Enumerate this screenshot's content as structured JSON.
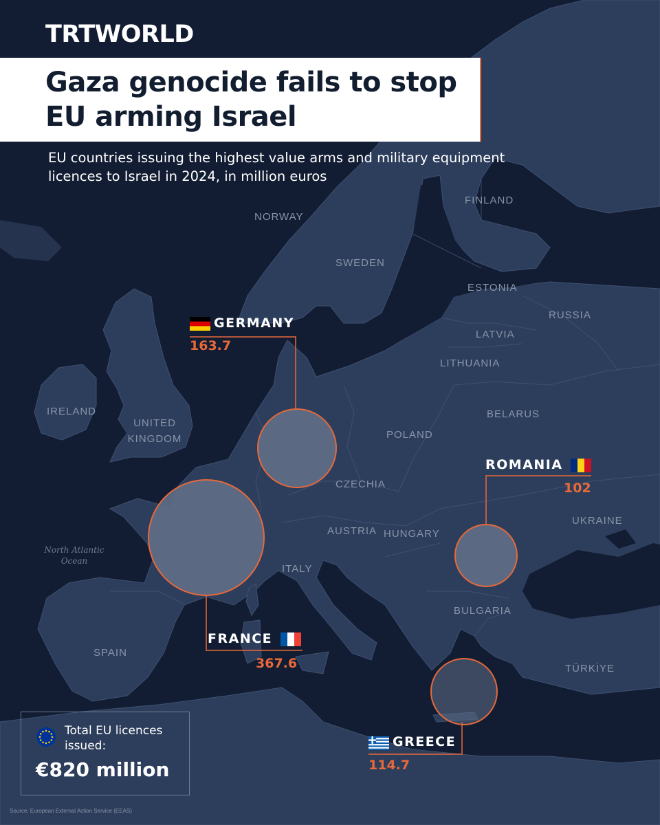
{
  "brand": "TRTWORLD",
  "title": "Gaza genocide fails to stop EU arming Israel",
  "subtitle": "EU countries issuing the highest value arms and military equipment licences to Israel in 2024, in million euros",
  "country_labels": {
    "finland": "FINLAND",
    "norway": "NORWAY",
    "sweden": "SWEDEN",
    "estonia": "ESTONIA",
    "russia": "RUSSIA",
    "latvia": "LATVIA",
    "lithuania": "LITHUANIA",
    "belarus": "BELARUS",
    "ireland": "IRELAND",
    "united_kingdom": "UNITED\nKINGDOM",
    "poland": "POLAND",
    "czechia": "CZECHIA",
    "austria": "AUSTRIA",
    "hungary": "HUNGARY",
    "ukraine": "UKRAINE",
    "italy": "ITALY",
    "bulgaria": "BULGARIA",
    "spain": "SPAIN",
    "turkiye": "TÜRKİYE"
  },
  "ocean_label": "North Atlantic\nOcean",
  "highlighted": [
    {
      "id": "germany",
      "name": "GERMANY",
      "value": "163.7",
      "flag": "de-flag"
    },
    {
      "id": "france",
      "name": "FRANCE",
      "value": "367.6",
      "flag": "fr-flag"
    },
    {
      "id": "romania",
      "name": "ROMANIA",
      "value": "102",
      "flag": "ro-flag"
    },
    {
      "id": "greece",
      "name": "GREECE",
      "value": "114.7",
      "flag": "gr-flag"
    }
  ],
  "total": {
    "label": "Total EU licences issued:",
    "value": "€820 million"
  },
  "source": "Source: European External Action Service (EEAS)",
  "colors": {
    "sea": "#121d33",
    "land": "#2d3e5c",
    "accent": "#e8693a",
    "bubble": "#5f6d86",
    "text": "#ffffff"
  }
}
